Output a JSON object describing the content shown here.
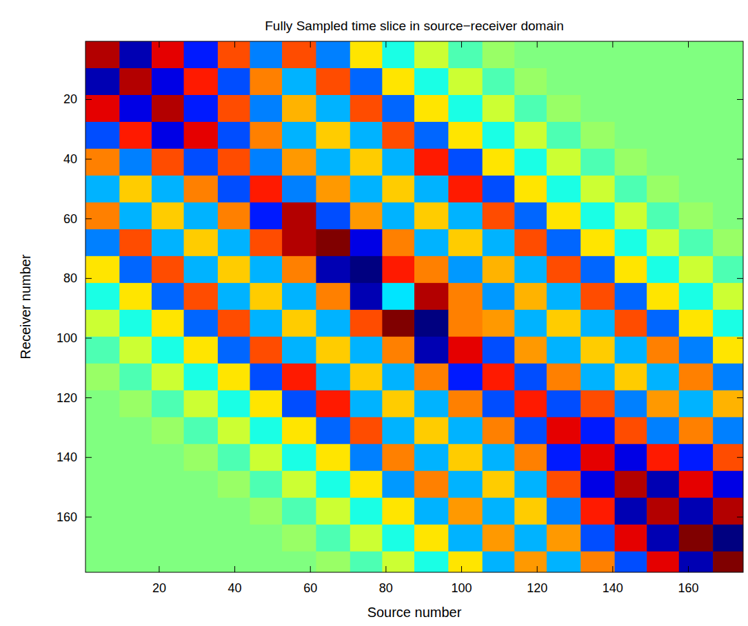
{
  "chart_data": {
    "type": "heatmap",
    "title": "Fully Sampled time slice in source−receiver domain",
    "x_label": "Source number",
    "y_label": "Receiver number",
    "xlim": [
      0.5,
      174.5
    ],
    "ylim": [
      0.5,
      178.5
    ],
    "xticks": [
      20,
      40,
      60,
      80,
      100,
      120,
      140,
      160
    ],
    "yticks": [
      20,
      40,
      60,
      80,
      100,
      120,
      140,
      160
    ],
    "zlim": [
      -1,
      1
    ],
    "x": [
      5,
      14,
      22,
      31,
      40,
      48,
      57,
      66,
      75,
      83,
      92,
      101,
      110,
      118,
      127,
      136,
      145,
      153,
      162,
      171
    ],
    "y": [
      5,
      14,
      23,
      32,
      41,
      50,
      59,
      68,
      77,
      86,
      95,
      104,
      113,
      122,
      131,
      140,
      149,
      158,
      167,
      176
    ],
    "z": [
      [
        0.9,
        -0.9,
        0.8,
        -0.7,
        0.6,
        -0.5,
        0.6,
        -0.5,
        0.3,
        -0.2,
        0.15,
        -0.1,
        0.05,
        0,
        0,
        0,
        0,
        0,
        0,
        0
      ],
      [
        -0.9,
        0.9,
        -0.8,
        0.7,
        -0.6,
        0.5,
        -0.4,
        0.6,
        -0.55,
        0.3,
        -0.2,
        0.15,
        -0.1,
        0.05,
        0,
        0,
        0,
        0,
        0,
        0
      ],
      [
        0.8,
        -0.8,
        0.9,
        -0.7,
        0.6,
        -0.5,
        0.4,
        -0.4,
        0.6,
        -0.55,
        0.3,
        -0.2,
        0.15,
        -0.1,
        0.05,
        0,
        0,
        0,
        0,
        0
      ],
      [
        -0.6,
        0.7,
        -0.8,
        0.8,
        -0.6,
        0.5,
        -0.4,
        0.35,
        -0.4,
        0.6,
        -0.55,
        0.3,
        -0.2,
        0.15,
        -0.1,
        0.05,
        0,
        0,
        0,
        0
      ],
      [
        0.5,
        -0.5,
        0.6,
        -0.6,
        0.6,
        -0.5,
        0.45,
        -0.4,
        0.35,
        -0.4,
        0.7,
        -0.6,
        0.3,
        -0.2,
        0.15,
        -0.1,
        0.05,
        0,
        0,
        0
      ],
      [
        -0.4,
        0.35,
        -0.4,
        0.5,
        -0.6,
        0.7,
        -0.5,
        0.45,
        -0.4,
        0.35,
        -0.4,
        0.7,
        -0.6,
        0.3,
        -0.2,
        0.15,
        -0.1,
        0.05,
        0,
        0
      ],
      [
        0.5,
        -0.4,
        0.35,
        -0.4,
        0.5,
        -0.7,
        0.9,
        -0.6,
        0.45,
        -0.4,
        0.35,
        -0.4,
        0.6,
        -0.55,
        0.3,
        -0.2,
        0.15,
        -0.1,
        0.05,
        0
      ],
      [
        -0.5,
        0.6,
        -0.4,
        0.35,
        -0.4,
        0.6,
        0.9,
        1.0,
        -0.8,
        0.5,
        -0.4,
        0.35,
        -0.4,
        0.6,
        -0.55,
        0.3,
        -0.2,
        0.15,
        -0.1,
        0.05
      ],
      [
        0.3,
        -0.55,
        0.6,
        -0.4,
        0.35,
        -0.4,
        0.5,
        -0.9,
        -1.0,
        0.7,
        0.5,
        -0.45,
        0.4,
        -0.4,
        0.6,
        -0.55,
        0.3,
        -0.2,
        0.15,
        -0.1
      ],
      [
        -0.2,
        0.3,
        -0.55,
        0.6,
        -0.4,
        0.35,
        -0.4,
        0.5,
        -0.9,
        -0.3,
        0.9,
        0.5,
        -0.45,
        0.4,
        -0.4,
        0.6,
        -0.55,
        0.3,
        -0.2,
        0.15
      ],
      [
        0.15,
        -0.2,
        0.3,
        -0.55,
        0.6,
        -0.4,
        0.35,
        -0.4,
        0.6,
        1.0,
        -1.0,
        0.5,
        0.45,
        -0.4,
        0.35,
        -0.4,
        0.6,
        -0.55,
        0.3,
        -0.2
      ],
      [
        -0.1,
        0.15,
        -0.2,
        0.3,
        -0.55,
        0.6,
        -0.4,
        0.35,
        -0.4,
        0.5,
        -0.9,
        0.8,
        -0.6,
        0.45,
        -0.4,
        0.35,
        -0.4,
        0.5,
        -0.5,
        0.3
      ],
      [
        0.05,
        -0.1,
        0.15,
        -0.2,
        0.3,
        -0.6,
        0.7,
        -0.4,
        0.35,
        -0.4,
        0.5,
        -0.7,
        0.7,
        -0.6,
        0.5,
        -0.4,
        0.35,
        -0.4,
        0.5,
        -0.5
      ],
      [
        0,
        0.05,
        -0.1,
        0.15,
        -0.2,
        0.3,
        -0.6,
        0.7,
        -0.4,
        0.35,
        -0.4,
        0.5,
        -0.6,
        0.7,
        -0.6,
        0.6,
        -0.5,
        0.45,
        -0.4,
        0.4
      ],
      [
        0,
        0,
        0.05,
        -0.1,
        0.15,
        -0.2,
        0.3,
        -0.55,
        0.6,
        -0.4,
        0.35,
        -0.4,
        0.5,
        -0.6,
        0.8,
        -0.7,
        0.6,
        -0.5,
        0.5,
        -0.5
      ],
      [
        0,
        0,
        0,
        0.05,
        -0.1,
        0.15,
        -0.2,
        0.3,
        -0.5,
        0.5,
        -0.4,
        0.35,
        -0.4,
        0.5,
        -0.7,
        0.8,
        -0.8,
        0.7,
        -0.7,
        0.6
      ],
      [
        0,
        0,
        0,
        0,
        0.05,
        -0.1,
        0.15,
        -0.2,
        0.3,
        -0.45,
        0.5,
        -0.4,
        0.35,
        -0.4,
        0.6,
        -0.8,
        0.9,
        -0.9,
        0.8,
        -0.8
      ],
      [
        0,
        0,
        0,
        0,
        0,
        0.05,
        -0.1,
        0.15,
        -0.2,
        0.3,
        -0.4,
        0.45,
        -0.4,
        0.35,
        -0.5,
        0.7,
        -0.9,
        0.9,
        -0.9,
        0.9
      ],
      [
        0,
        0,
        0,
        0,
        0,
        0,
        0.05,
        -0.1,
        0.15,
        -0.2,
        0.3,
        -0.4,
        0.45,
        -0.4,
        0.45,
        -0.6,
        0.8,
        -0.9,
        1.0,
        -1.0
      ],
      [
        0,
        0,
        0,
        0,
        0,
        0,
        0,
        0.05,
        -0.1,
        0.15,
        -0.2,
        0.3,
        -0.4,
        0.45,
        -0.4,
        0.5,
        -0.6,
        0.8,
        -0.9,
        1.0
      ]
    ]
  }
}
